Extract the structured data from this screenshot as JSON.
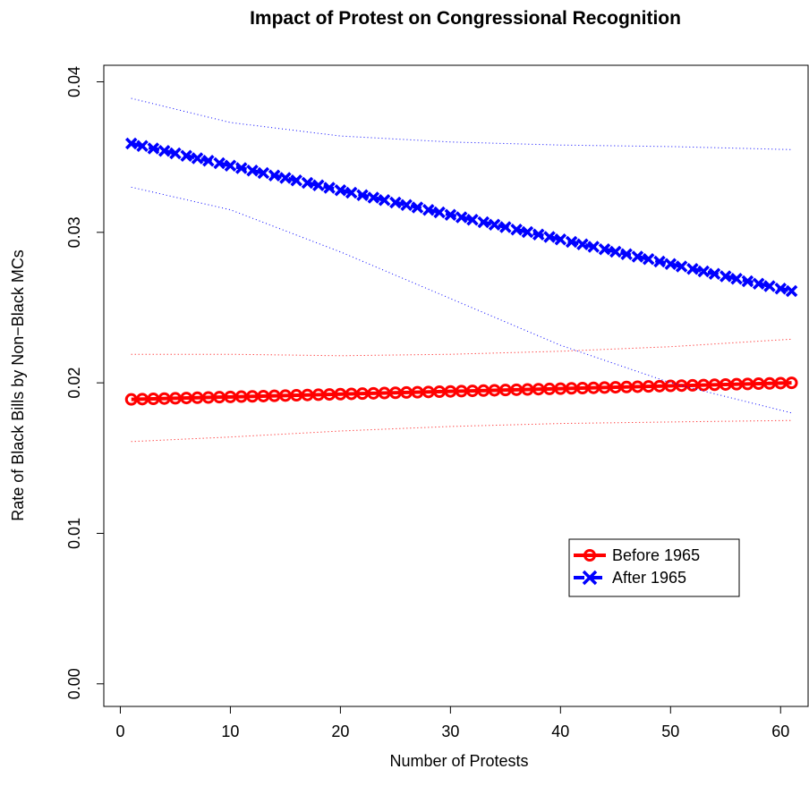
{
  "chart_data": {
    "type": "line",
    "title": "Impact of Protest on Congressional Recognition",
    "xlabel": "Number of Protests",
    "ylabel": "Rate of Black Bills by Non−Black MCs",
    "xlim": [
      -1.5,
      62.5
    ],
    "ylim": [
      -0.0015,
      0.0411
    ],
    "x_ticks": [
      0,
      10,
      20,
      30,
      40,
      50,
      60
    ],
    "x_tick_labels": [
      "0",
      "10",
      "20",
      "30",
      "40",
      "50",
      "60"
    ],
    "y_ticks": [
      0.0,
      0.01,
      0.02,
      0.03,
      0.04
    ],
    "y_tick_labels": [
      "0.00",
      "0.01",
      "0.02",
      "0.03",
      "0.04"
    ],
    "grid": false,
    "legend_position": "center-right",
    "x_start": 1,
    "x_end": 61,
    "series": [
      {
        "name": "Before 1965",
        "color": "#ff0000",
        "marker": "circle",
        "line_style": "solid",
        "start": 0.0189,
        "end": 0.02,
        "lower_ci": [
          [
            1,
            0.0161
          ],
          [
            10,
            0.0164
          ],
          [
            20,
            0.0168
          ],
          [
            30,
            0.0171
          ],
          [
            40,
            0.0173
          ],
          [
            50,
            0.0174
          ],
          [
            61,
            0.0175
          ]
        ],
        "upper_ci": [
          [
            1,
            0.0219
          ],
          [
            10,
            0.0219
          ],
          [
            20,
            0.0218
          ],
          [
            30,
            0.0219
          ],
          [
            40,
            0.0221
          ],
          [
            50,
            0.0224
          ],
          [
            61,
            0.0229
          ]
        ]
      },
      {
        "name": "After 1965",
        "color": "#0000ff",
        "marker": "cross",
        "line_style": "dashed",
        "start": 0.0359,
        "end": 0.0261,
        "lower_ci": [
          [
            1,
            0.033
          ],
          [
            10,
            0.0315
          ],
          [
            20,
            0.0287
          ],
          [
            30,
            0.0256
          ],
          [
            40,
            0.0225
          ],
          [
            50,
            0.02
          ],
          [
            61,
            0.018
          ]
        ],
        "upper_ci": [
          [
            1,
            0.0389
          ],
          [
            10,
            0.0373
          ],
          [
            20,
            0.0364
          ],
          [
            30,
            0.036
          ],
          [
            40,
            0.0358
          ],
          [
            50,
            0.0357
          ],
          [
            61,
            0.0355
          ]
        ]
      }
    ]
  }
}
